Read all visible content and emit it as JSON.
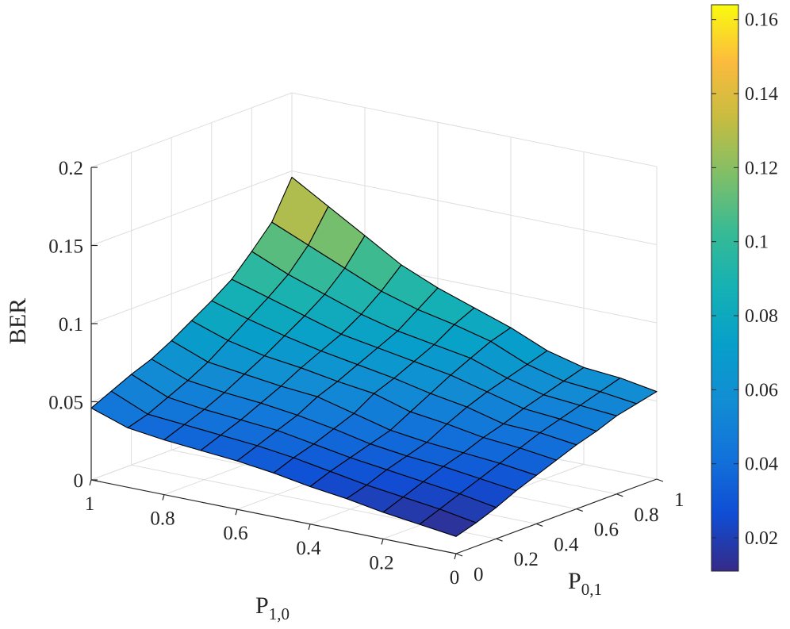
{
  "chart_data": {
    "type": "surface",
    "xlabel": "P",
    "xlabel_subscript": "1,0",
    "ylabel": "P",
    "ylabel_subscript": "0,1",
    "zlabel": "BER",
    "x_range": [
      0,
      1
    ],
    "y_range": [
      0,
      1
    ],
    "zlim": [
      0,
      0.2
    ],
    "x_ticks": [
      {
        "value": 0,
        "label": "0"
      },
      {
        "value": 0.2,
        "label": "0.2"
      },
      {
        "value": 0.4,
        "label": "0.4"
      },
      {
        "value": 0.6,
        "label": "0.6"
      },
      {
        "value": 0.8,
        "label": "0.8"
      },
      {
        "value": 1,
        "label": "1"
      }
    ],
    "y_ticks": [
      {
        "value": 0,
        "label": "0"
      },
      {
        "value": 0.2,
        "label": "0.2"
      },
      {
        "value": 0.4,
        "label": "0.4"
      },
      {
        "value": 0.6,
        "label": "0.6"
      },
      {
        "value": 0.8,
        "label": "0.8"
      },
      {
        "value": 1,
        "label": "1"
      }
    ],
    "z_ticks": [
      {
        "value": 0,
        "label": "0"
      },
      {
        "value": 0.05,
        "label": "0.05"
      },
      {
        "value": 0.1,
        "label": "0.1"
      },
      {
        "value": 0.15,
        "label": "0.15"
      },
      {
        "value": 0.2,
        "label": "0.2"
      }
    ],
    "colorbar": {
      "colormap": "parula",
      "range": [
        0.011,
        0.164
      ],
      "ticks": [
        {
          "value": 0.02,
          "label": "0.02"
        },
        {
          "value": 0.04,
          "label": "0.04"
        },
        {
          "value": 0.06,
          "label": "0.06"
        },
        {
          "value": 0.08,
          "label": "0.08"
        },
        {
          "value": 0.1,
          "label": "0.1"
        },
        {
          "value": 0.12,
          "label": "0.12"
        },
        {
          "value": 0.14,
          "label": "0.14"
        },
        {
          "value": 0.16,
          "label": "0.16"
        }
      ]
    },
    "grid": true,
    "x": [
      0,
      0.1,
      0.2,
      0.3,
      0.4,
      0.5,
      0.6,
      0.7,
      0.8,
      0.9,
      1.0
    ],
    "y": [
      0,
      0.1,
      0.2,
      0.3,
      0.4,
      0.5,
      0.6,
      0.7,
      0.8,
      0.9,
      1.0
    ],
    "z_note": "z[i][j] = BER at P1,0 = x[i], P0,1 = y[j]",
    "z": [
      [
        0.011,
        0.015,
        0.02,
        0.026,
        0.031,
        0.036,
        0.041,
        0.045,
        0.05,
        0.053,
        0.056
      ],
      [
        0.014,
        0.019,
        0.024,
        0.029,
        0.034,
        0.039,
        0.044,
        0.048,
        0.052,
        0.056,
        0.06
      ],
      [
        0.017,
        0.022,
        0.027,
        0.032,
        0.036,
        0.041,
        0.045,
        0.05,
        0.054,
        0.058,
        0.062
      ],
      [
        0.021,
        0.025,
        0.03,
        0.034,
        0.038,
        0.045,
        0.051,
        0.056,
        0.06,
        0.064,
        0.068
      ],
      [
        0.024,
        0.029,
        0.033,
        0.037,
        0.041,
        0.048,
        0.055,
        0.062,
        0.068,
        0.074,
        0.078
      ],
      [
        0.028,
        0.033,
        0.037,
        0.042,
        0.047,
        0.055,
        0.06,
        0.066,
        0.072,
        0.08,
        0.086
      ],
      [
        0.031,
        0.036,
        0.041,
        0.046,
        0.053,
        0.058,
        0.064,
        0.07,
        0.076,
        0.085,
        0.094
      ],
      [
        0.033,
        0.038,
        0.043,
        0.049,
        0.055,
        0.062,
        0.068,
        0.074,
        0.082,
        0.092,
        0.104
      ],
      [
        0.035,
        0.04,
        0.045,
        0.051,
        0.058,
        0.065,
        0.073,
        0.081,
        0.09,
        0.102,
        0.118
      ],
      [
        0.038,
        0.042,
        0.048,
        0.054,
        0.061,
        0.07,
        0.079,
        0.088,
        0.098,
        0.112,
        0.132
      ],
      [
        0.046,
        0.052,
        0.058,
        0.063,
        0.07,
        0.078,
        0.086,
        0.095,
        0.108,
        0.122,
        0.146
      ]
    ]
  }
}
